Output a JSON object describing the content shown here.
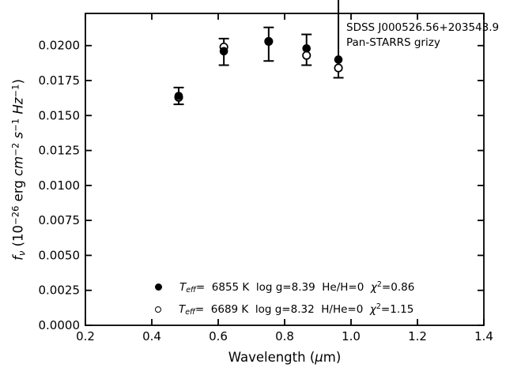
{
  "annotation": {
    "line1": "SDSS J000526.56+203543.9",
    "line2": "Pan-STARRS grizy"
  },
  "axes": {
    "xlabel_parts": {
      "pre": "Wavelength (",
      "mu": "μ",
      "post": "m)"
    },
    "ylabel_parts": {
      "f": "f",
      "nu": "ν",
      "open": " (10",
      "exp26": "−26",
      "erg": " erg ",
      "cm": "cm",
      "exp2": "−2",
      "s": " s",
      "exp1a": "−1",
      "hz": " Hz",
      "exp1b": "−1",
      "close": ")"
    }
  },
  "legend": {
    "rows": [
      {
        "marker": "filled-circle",
        "t": "T",
        "t_sub": "eff",
        "teff_val": "=  6855 K  ",
        "logg": "log g=8.39  ",
        "comp": "He/H=0  ",
        "chi": "χ",
        "chi_sup": "2",
        "chi_val": "=0.86"
      },
      {
        "marker": "open-circle",
        "t": "T",
        "t_sub": "eff",
        "teff_val": "=  6689 K  ",
        "logg": "log g=8.32  ",
        "comp": "H/He=0  ",
        "chi": "χ",
        "chi_sup": "2",
        "chi_val": "=1.15"
      }
    ]
  },
  "colors": {
    "foreground": "#000000",
    "background": "#ffffff"
  },
  "chart_data": {
    "type": "scatter",
    "title": "",
    "xlabel": "Wavelength (μm)",
    "ylabel": "f_ν (10^−26 erg cm^−2 s^−1 Hz^−1)",
    "xlim": [
      0.2,
      1.4
    ],
    "ylim": [
      0.0,
      0.0223
    ],
    "x_ticks": [
      0.2,
      0.4,
      0.6,
      0.8,
      1.0,
      1.2,
      1.4
    ],
    "x_tick_labels": [
      "0.2",
      "0.4",
      "0.6",
      "0.8",
      "1.0",
      "1.2",
      "1.4"
    ],
    "y_ticks": [
      0.0,
      0.0025,
      0.005,
      0.0075,
      0.01,
      0.0125,
      0.015,
      0.0175,
      0.02
    ],
    "y_tick_labels": [
      "0.0000",
      "0.0025",
      "0.0050",
      "0.0075",
      "0.0100",
      "0.0125",
      "0.0150",
      "0.0175",
      "0.0200"
    ],
    "grid": false,
    "legend_position": "lower center inside axes",
    "bands": [
      "g",
      "r",
      "i",
      "z",
      "y"
    ],
    "x": [
      0.481,
      0.617,
      0.752,
      0.866,
      0.962
    ],
    "series": [
      {
        "name": "Teff= 6855 K log g=8.39 He/H=0 chi2=0.86",
        "marker": "filled-circle",
        "values": [
          0.0164,
          0.0196,
          0.0203,
          0.0198,
          0.019
        ]
      },
      {
        "name": "Teff= 6689 K log g=8.32 H/He=0 chi2=1.15",
        "marker": "open-circle",
        "values": [
          0.0163,
          0.0199,
          0.0203,
          0.0193,
          0.0184
        ]
      }
    ],
    "error_bars": [
      {
        "x": 0.481,
        "lo": 0.0158,
        "hi": 0.017,
        "hi_clipped": false
      },
      {
        "x": 0.617,
        "lo": 0.0186,
        "hi": 0.0205,
        "hi_clipped": false
      },
      {
        "x": 0.752,
        "lo": 0.0189,
        "hi": 0.0213,
        "hi_clipped": false
      },
      {
        "x": 0.866,
        "lo": 0.0186,
        "hi": 0.0208,
        "hi_clipped": false
      },
      {
        "x": 0.962,
        "lo": 0.0177,
        "hi": null,
        "hi_clipped": true
      }
    ]
  }
}
